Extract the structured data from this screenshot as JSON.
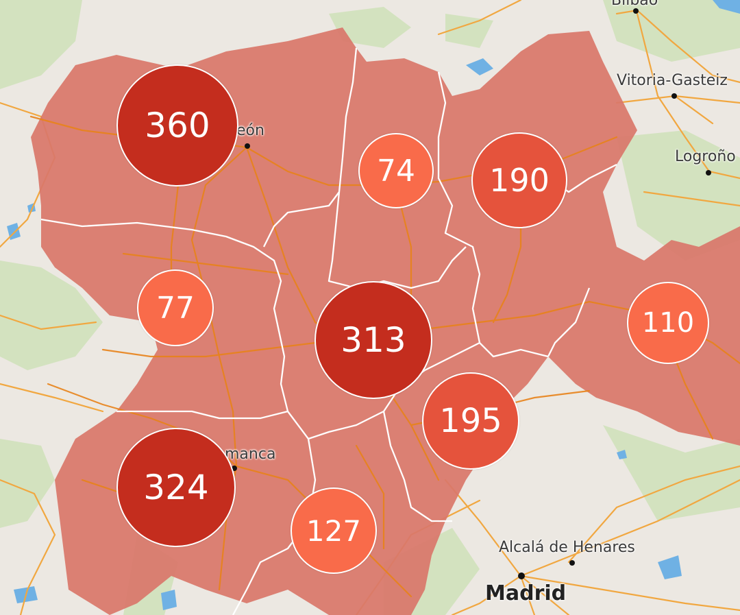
{
  "colors": {
    "region_fill": "#d9776b",
    "border": "#ffffff",
    "road": "#e8831a",
    "background": "#ece8e2",
    "high": "#c42d1e",
    "medium": "#e5533c",
    "low": "#f96b4a"
  },
  "places": {
    "bilbao": "Bilbao",
    "vitoria": "Vitoria-Gasteiz",
    "logrono": "Logroño",
    "leon": "eón",
    "salamanca": "manca",
    "alcala": "Alcalá de Henares",
    "madrid": "Madrid"
  },
  "clusters": [
    {
      "id": "leon",
      "label": "360",
      "value": 360,
      "level": "high"
    },
    {
      "id": "palencia",
      "label": "74",
      "value": 74,
      "level": "low"
    },
    {
      "id": "burgos",
      "label": "190",
      "value": 190,
      "level": "medium"
    },
    {
      "id": "zamora",
      "label": "77",
      "value": 77,
      "level": "low"
    },
    {
      "id": "valladolid",
      "label": "313",
      "value": 313,
      "level": "high"
    },
    {
      "id": "soria",
      "label": "110",
      "value": 110,
      "level": "low"
    },
    {
      "id": "segovia",
      "label": "195",
      "value": 195,
      "level": "medium"
    },
    {
      "id": "salamanca",
      "label": "324",
      "value": 324,
      "level": "high"
    },
    {
      "id": "avila",
      "label": "127",
      "value": 127,
      "level": "low"
    }
  ]
}
